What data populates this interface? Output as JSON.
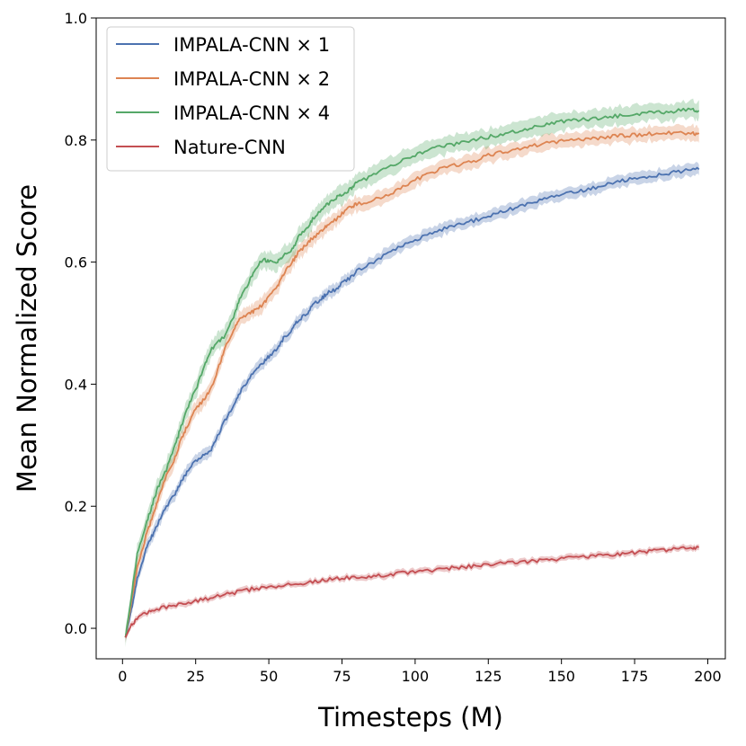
{
  "chart_data": {
    "type": "line",
    "title": "",
    "xlabel": "Timesteps (M)",
    "ylabel": "Mean Normalized Score",
    "xlim": [
      -9,
      206
    ],
    "ylim": [
      -0.05,
      1.0
    ],
    "xticks": [
      "0",
      "25",
      "50",
      "75",
      "100",
      "125",
      "150",
      "175",
      "200"
    ],
    "yticks": [
      "0.0",
      "0.2",
      "0.4",
      "0.6",
      "0.8",
      "1.0"
    ],
    "grid": false,
    "legend": "top-left",
    "series": [
      {
        "name": "IMPALA-CNN × 1",
        "color": "#4c72b0",
        "x": [
          1,
          3,
          5,
          8,
          10,
          12,
          15,
          18,
          20,
          22,
          25,
          28,
          30,
          32,
          35,
          38,
          40,
          42,
          45,
          48,
          50,
          53,
          55,
          58,
          60,
          63,
          65,
          68,
          70,
          73,
          75,
          78,
          80,
          85,
          90,
          95,
          100,
          105,
          110,
          115,
          120,
          125,
          130,
          135,
          140,
          145,
          150,
          155,
          160,
          165,
          170,
          175,
          180,
          185,
          190,
          195,
          197
        ],
        "y": [
          -0.015,
          0.03,
          0.08,
          0.13,
          0.15,
          0.17,
          0.2,
          0.22,
          0.24,
          0.255,
          0.275,
          0.285,
          0.29,
          0.31,
          0.34,
          0.365,
          0.385,
          0.4,
          0.42,
          0.435,
          0.445,
          0.46,
          0.475,
          0.49,
          0.505,
          0.515,
          0.53,
          0.54,
          0.55,
          0.555,
          0.565,
          0.575,
          0.585,
          0.598,
          0.612,
          0.625,
          0.637,
          0.645,
          0.655,
          0.663,
          0.668,
          0.675,
          0.683,
          0.69,
          0.698,
          0.705,
          0.71,
          0.715,
          0.72,
          0.727,
          0.733,
          0.737,
          0.74,
          0.745,
          0.748,
          0.752,
          0.752
        ],
        "band": 0.012
      },
      {
        "name": "IMPALA-CNN × 2",
        "color": "#dd8452",
        "x": [
          1,
          3,
          5,
          8,
          10,
          12,
          15,
          18,
          20,
          22,
          25,
          28,
          30,
          33,
          35,
          38,
          40,
          43,
          45,
          48,
          50,
          53,
          55,
          58,
          60,
          63,
          65,
          68,
          70,
          73,
          75,
          78,
          80,
          85,
          90,
          95,
          100,
          105,
          110,
          115,
          120,
          125,
          130,
          135,
          140,
          145,
          150,
          155,
          160,
          165,
          170,
          175,
          180,
          185,
          190,
          195,
          197
        ],
        "y": [
          -0.015,
          0.04,
          0.1,
          0.15,
          0.18,
          0.21,
          0.25,
          0.28,
          0.31,
          0.33,
          0.36,
          0.375,
          0.39,
          0.43,
          0.46,
          0.49,
          0.505,
          0.515,
          0.52,
          0.53,
          0.545,
          0.56,
          0.58,
          0.6,
          0.615,
          0.63,
          0.64,
          0.65,
          0.66,
          0.67,
          0.68,
          0.69,
          0.695,
          0.7,
          0.71,
          0.72,
          0.735,
          0.745,
          0.755,
          0.76,
          0.765,
          0.775,
          0.78,
          0.785,
          0.79,
          0.795,
          0.798,
          0.8,
          0.802,
          0.805,
          0.807,
          0.808,
          0.81,
          0.811,
          0.812,
          0.811,
          0.81
        ],
        "band": 0.015
      },
      {
        "name": "IMPALA-CNN × 4",
        "color": "#55a868",
        "x": [
          1,
          3,
          5,
          8,
          10,
          12,
          15,
          18,
          20,
          23,
          25,
          28,
          30,
          33,
          35,
          38,
          40,
          43,
          45,
          48,
          50,
          53,
          55,
          58,
          60,
          63,
          65,
          68,
          70,
          73,
          75,
          78,
          80,
          85,
          90,
          95,
          100,
          105,
          110,
          115,
          120,
          125,
          130,
          135,
          140,
          145,
          150,
          155,
          160,
          165,
          170,
          175,
          180,
          185,
          190,
          195,
          197
        ],
        "y": [
          -0.015,
          0.05,
          0.12,
          0.17,
          0.2,
          0.23,
          0.26,
          0.3,
          0.33,
          0.37,
          0.39,
          0.43,
          0.455,
          0.47,
          0.48,
          0.51,
          0.54,
          0.565,
          0.585,
          0.605,
          0.6,
          0.6,
          0.61,
          0.62,
          0.64,
          0.655,
          0.67,
          0.685,
          0.695,
          0.705,
          0.71,
          0.72,
          0.73,
          0.74,
          0.755,
          0.765,
          0.775,
          0.785,
          0.79,
          0.795,
          0.8,
          0.805,
          0.81,
          0.815,
          0.82,
          0.825,
          0.83,
          0.832,
          0.835,
          0.837,
          0.84,
          0.842,
          0.845,
          0.846,
          0.848,
          0.85,
          0.848
        ],
        "band": 0.018
      },
      {
        "name": "Nature-CNN",
        "color": "#c44e52",
        "x": [
          1,
          3,
          5,
          8,
          10,
          15,
          20,
          25,
          30,
          35,
          40,
          45,
          50,
          55,
          60,
          65,
          70,
          75,
          80,
          85,
          90,
          95,
          100,
          105,
          110,
          115,
          120,
          125,
          130,
          135,
          140,
          145,
          150,
          155,
          160,
          165,
          170,
          175,
          180,
          185,
          190,
          195,
          197
        ],
        "y": [
          -0.015,
          0.005,
          0.015,
          0.025,
          0.03,
          0.035,
          0.04,
          0.045,
          0.05,
          0.055,
          0.06,
          0.065,
          0.068,
          0.07,
          0.073,
          0.076,
          0.08,
          0.082,
          0.083,
          0.085,
          0.088,
          0.09,
          0.093,
          0.095,
          0.098,
          0.1,
          0.102,
          0.104,
          0.106,
          0.108,
          0.11,
          0.112,
          0.114,
          0.116,
          0.118,
          0.12,
          0.122,
          0.124,
          0.126,
          0.128,
          0.13,
          0.132,
          0.133
        ],
        "band": 0.006
      }
    ]
  }
}
